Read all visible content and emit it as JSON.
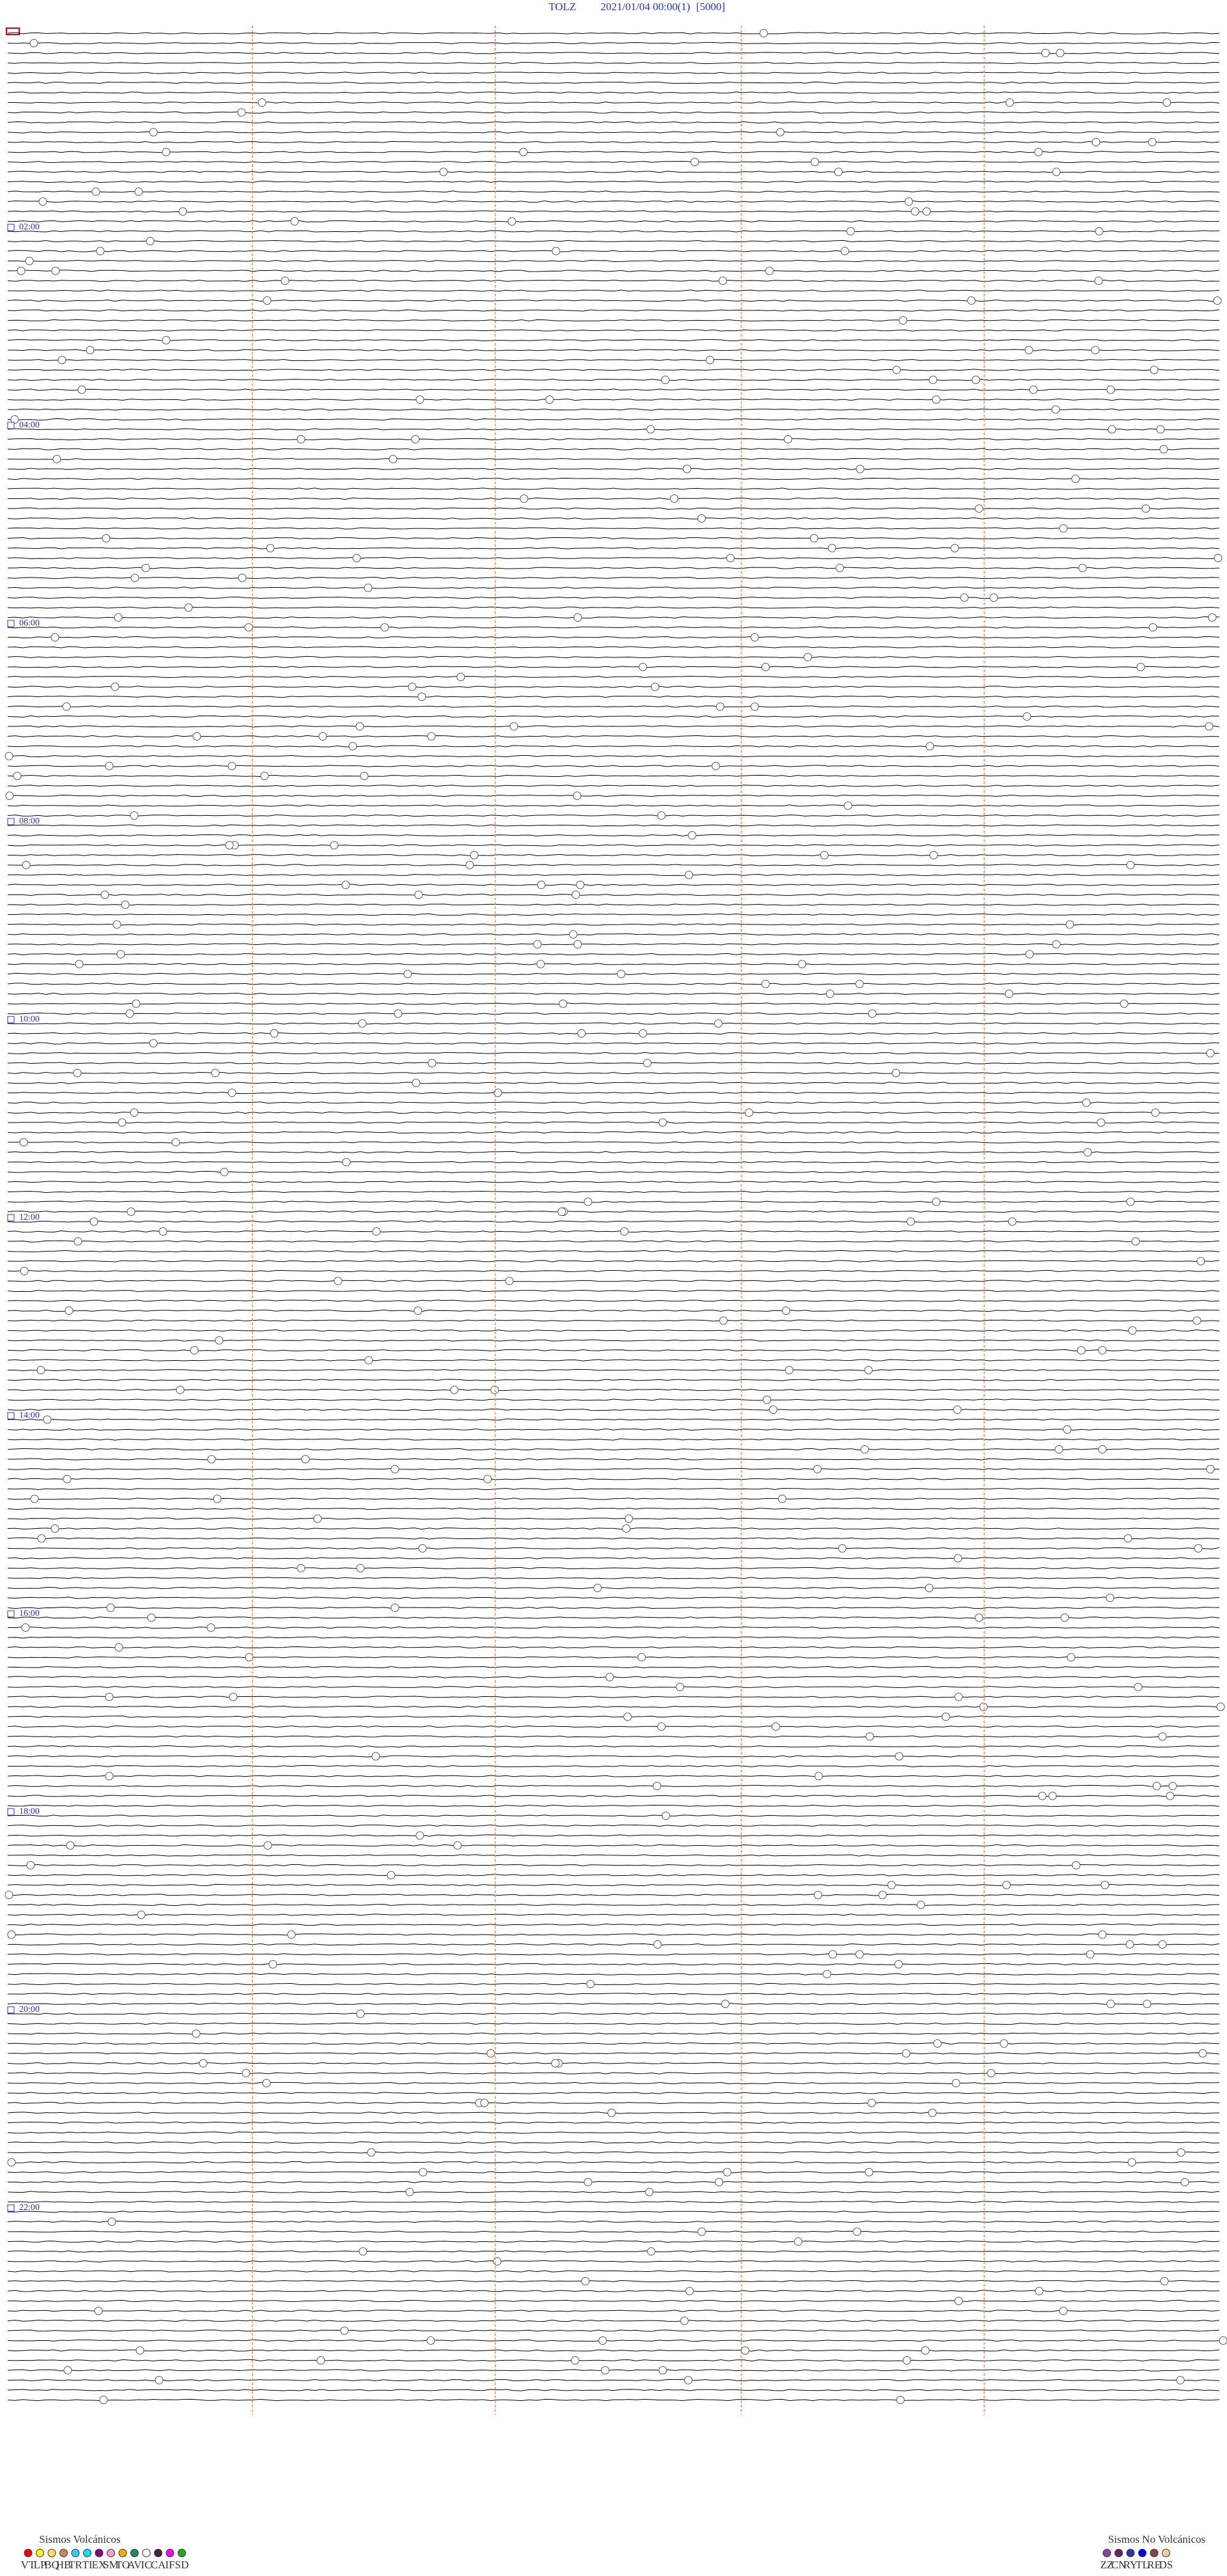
{
  "header": {
    "station": "TOLZ",
    "datetime": "2021/01/04 00:00",
    "channel": "(1)",
    "scale": "[5000]"
  },
  "hour_labels": [
    "02:00",
    "04:00",
    "06:00",
    "08:00",
    "10:00",
    "12:00",
    "14:00",
    "16:00",
    "18:00",
    "20:00",
    "22:00"
  ],
  "legend_volcanic": {
    "title": "Sismos Volcánicos",
    "items": [
      {
        "code": "VT",
        "color": "#ff0000"
      },
      {
        "code": "LP",
        "color": "#ffff00"
      },
      {
        "code": "BQ",
        "color": "#ffd966"
      },
      {
        "code": "HB",
        "color": "#d08850"
      },
      {
        "code": "TR",
        "color": "#33ccff"
      },
      {
        "code": "TI",
        "color": "#00e5e5"
      },
      {
        "code": "EX",
        "color": "#800080"
      },
      {
        "code": "SM",
        "color": "#ff99cc"
      },
      {
        "code": "TO",
        "color": "#ffaa00"
      },
      {
        "code": "AV",
        "color": "#228866"
      },
      {
        "code": "IC",
        "color": "#ffffff"
      },
      {
        "code": "CA",
        "color": "#442244"
      },
      {
        "code": "IF",
        "color": "#ff00ff"
      },
      {
        "code": "SD",
        "color": "#22aa22"
      }
    ]
  },
  "legend_non_volcanic": {
    "title": "Sismos No Volcánicos",
    "items": [
      {
        "code": "ZZ",
        "color": "#8844aa"
      },
      {
        "code": "CN",
        "color": "#662266"
      },
      {
        "code": "RY",
        "color": "#3333aa"
      },
      {
        "code": "TL",
        "color": "#0000ff"
      },
      {
        "code": "RE",
        "color": "#884444"
      },
      {
        "code": "DS",
        "color": "#ffcc99"
      }
    ]
  }
}
